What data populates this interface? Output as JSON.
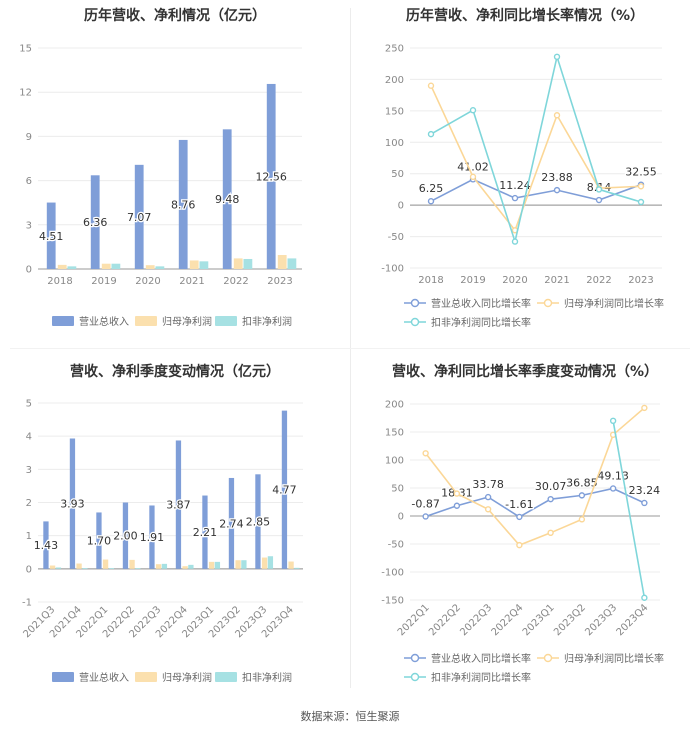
{
  "source_label": "数据来源：恒生聚源",
  "chart_data": [
    {
      "type": "bar",
      "title": "历年营收、净利情况（亿元）",
      "categories": [
        "2018",
        "2019",
        "2020",
        "2021",
        "2022",
        "2023"
      ],
      "ylim": [
        0,
        15
      ],
      "yticks": [
        0,
        3,
        6,
        9,
        12,
        15
      ],
      "grid": true,
      "legend_position": "bottom",
      "series": [
        {
          "name": "营业总收入",
          "color": "#7f9ed8",
          "values": [
            4.51,
            6.36,
            7.07,
            8.76,
            9.48,
            12.56
          ],
          "labels": [
            "4.51",
            "6.36",
            "7.07",
            "8.76",
            "9.48",
            "12.56"
          ]
        },
        {
          "name": "归母净利润",
          "color": "#fbe0ae",
          "values": [
            0.28,
            0.36,
            0.26,
            0.58,
            0.72,
            0.95
          ]
        },
        {
          "name": "扣非净利润",
          "color": "#a6e1e3",
          "values": [
            0.18,
            0.36,
            0.18,
            0.52,
            0.68,
            0.72
          ]
        }
      ]
    },
    {
      "type": "line",
      "title": "历年营收、净利同比增长率情况（%）",
      "categories": [
        "2018",
        "2019",
        "2020",
        "2021",
        "2022",
        "2023"
      ],
      "ylim": [
        -100,
        250
      ],
      "yticks": [
        -100,
        -50,
        0,
        50,
        100,
        150,
        200,
        250
      ],
      "grid": true,
      "legend_position": "bottom",
      "series": [
        {
          "name": "营业总收入同比增长率",
          "color": "#7f9ed8",
          "values": [
            6.25,
            41.02,
            11.24,
            23.88,
            8.14,
            32.55
          ],
          "labels": [
            "6.25",
            "41.02",
            "11.24",
            "23.88",
            "8.14",
            "32.55"
          ]
        },
        {
          "name": "归母净利润同比增长率",
          "color": "#fbd797",
          "values": [
            190,
            45,
            -40,
            143,
            27,
            30
          ]
        },
        {
          "name": "扣非净利润同比增长率",
          "color": "#7fd6da",
          "values": [
            113,
            151,
            -58,
            236,
            25,
            5
          ]
        }
      ]
    },
    {
      "type": "bar",
      "title": "营收、净利季度变动情况（亿元）",
      "categories": [
        "2021Q3",
        "2021Q4",
        "2022Q1",
        "2022Q2",
        "2022Q3",
        "2022Q4",
        "2023Q1",
        "2023Q2",
        "2023Q3",
        "2023Q4"
      ],
      "ylim": [
        -1,
        5
      ],
      "yticks": [
        -1,
        0,
        1,
        2,
        3,
        4,
        5
      ],
      "grid": true,
      "legend_position": "bottom",
      "series": [
        {
          "name": "营业总收入",
          "color": "#7f9ed8",
          "values": [
            1.43,
            3.93,
            1.7,
            2.0,
            1.91,
            3.87,
            2.21,
            2.74,
            2.85,
            4.77
          ],
          "labels": [
            "1.43",
            "3.93",
            "1.70",
            "2.00",
            "1.91",
            "3.87",
            "2.21",
            "2.74",
            "2.85",
            "4.77"
          ]
        },
        {
          "name": "归母净利润",
          "color": "#fbe0ae",
          "values": [
            0.1,
            0.16,
            0.28,
            0.27,
            0.14,
            0.08,
            0.21,
            0.26,
            0.34,
            0.22
          ]
        },
        {
          "name": "扣非净利润",
          "color": "#a6e1e3",
          "values": [
            0.04,
            0.02,
            0.02,
            0.02,
            0.15,
            0.12,
            0.21,
            0.26,
            0.38,
            0.03
          ]
        }
      ]
    },
    {
      "type": "line",
      "title": "营收、净利同比增长率季度变动情况（%）",
      "categories": [
        "2022Q1",
        "2022Q2",
        "2022Q3",
        "2022Q4",
        "2023Q1",
        "2023Q2",
        "2023Q3",
        "2023Q4"
      ],
      "ylim": [
        -150,
        200
      ],
      "yticks": [
        -150,
        -100,
        -50,
        0,
        50,
        100,
        150,
        200
      ],
      "grid": true,
      "legend_position": "bottom",
      "series": [
        {
          "name": "营业总收入同比增长率",
          "color": "#7f9ed8",
          "values": [
            -0.87,
            18.31,
            33.78,
            -1.61,
            30.07,
            36.85,
            49.13,
            23.24
          ],
          "labels": [
            "-0.87",
            "18.31",
            "33.78",
            "-1.61",
            "30.07",
            "36.85",
            "49.13",
            "23.24"
          ]
        },
        {
          "name": "归母净利润同比增长率",
          "color": "#fbd797",
          "values": [
            112,
            40,
            12,
            -52,
            -30,
            -6,
            145,
            193
          ]
        },
        {
          "name": "扣非净利润同比增长率",
          "color": "#7fd6da",
          "values": [
            null,
            null,
            null,
            null,
            null,
            null,
            170,
            -146
          ]
        }
      ]
    }
  ]
}
